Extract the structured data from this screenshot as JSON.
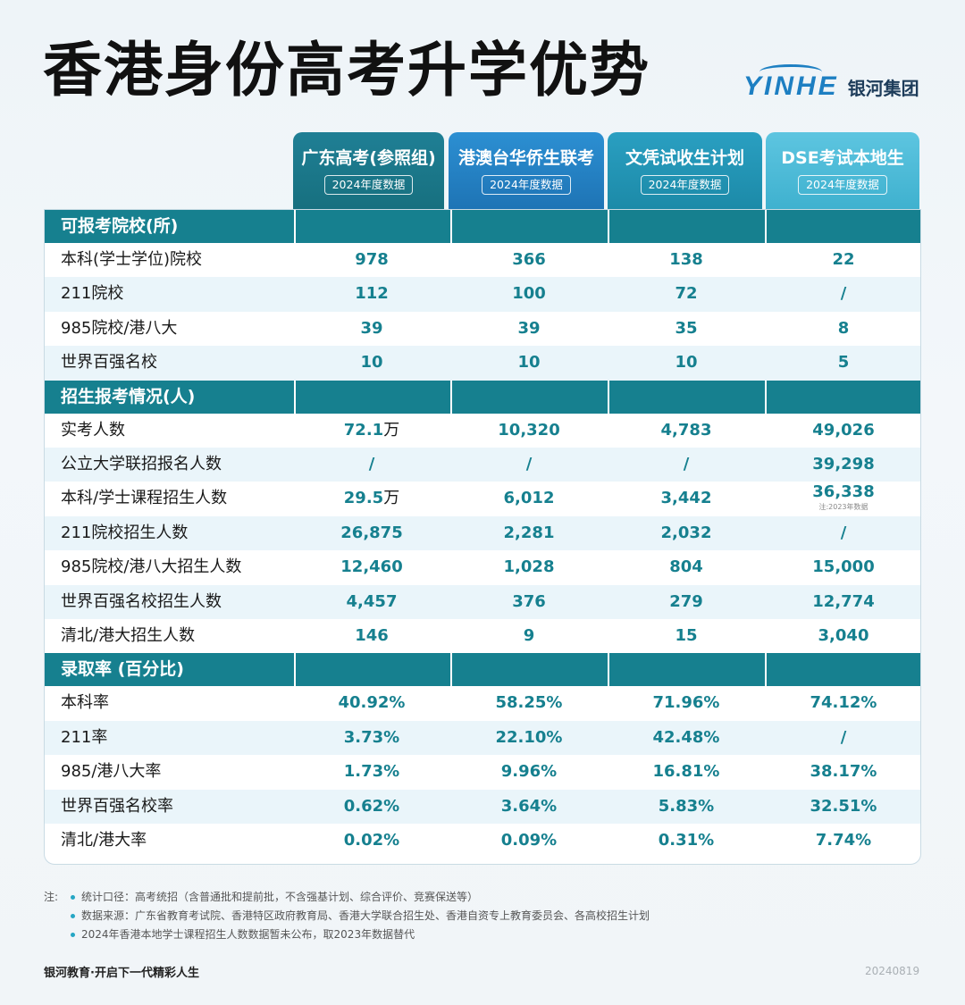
{
  "title": "香港身份高考升学优势",
  "brand": {
    "logo_text": "YINHE",
    "name": "银河集团"
  },
  "columns": [
    {
      "name": "广东高考(参照组)",
      "sub": "2024年度数据"
    },
    {
      "name": "港澳台华侨生联考",
      "sub": "2024年度数据"
    },
    {
      "name": "文凭试收生计划",
      "sub": "2024年度数据"
    },
    {
      "name": "DSE考试本地生",
      "sub": "2024年度数据"
    }
  ],
  "sections": [
    {
      "label": "可报考院校(所)",
      "rows": [
        {
          "label": "本科(学士学位)院校",
          "values": [
            "978",
            "366",
            "138",
            "22"
          ]
        },
        {
          "label": "211院校",
          "values": [
            "112",
            "100",
            "72",
            "/"
          ]
        },
        {
          "label": "985院校/港八大",
          "values": [
            "39",
            "39",
            "35",
            "8"
          ]
        },
        {
          "label": "世界百强名校",
          "values": [
            "10",
            "10",
            "10",
            "5"
          ]
        }
      ]
    },
    {
      "label": "招生报考情况(人)",
      "rows": [
        {
          "label": "实考人数",
          "values": [
            "72.1",
            "10,320",
            "4,783",
            "49,026"
          ],
          "unit0": "万"
        },
        {
          "label": "公立大学联招报名人数",
          "values": [
            "/",
            "/",
            "/",
            "39,298"
          ]
        },
        {
          "label": "本科/学士课程招生人数",
          "values": [
            "29.5",
            "6,012",
            "3,442",
            "36,338"
          ],
          "unit0": "万",
          "note3": "注:2023年数据"
        },
        {
          "label": "211院校招生人数",
          "values": [
            "26,875",
            "2,281",
            "2,032",
            "/"
          ]
        },
        {
          "label": "985院校/港八大招生人数",
          "values": [
            "12,460",
            "1,028",
            "804",
            "15,000"
          ]
        },
        {
          "label": "世界百强名校招生人数",
          "values": [
            "4,457",
            "376",
            "279",
            "12,774"
          ]
        },
        {
          "label": "清北/港大招生人数",
          "values": [
            "146",
            "9",
            "15",
            "3,040"
          ]
        }
      ]
    },
    {
      "label": "录取率 (百分比)",
      "rows": [
        {
          "label": "本科率",
          "values": [
            "40.92%",
            "58.25%",
            "71.96%",
            "74.12%"
          ]
        },
        {
          "label": "211率",
          "values": [
            "3.73%",
            "22.10%",
            "42.48%",
            "/"
          ]
        },
        {
          "label": "985/港八大率",
          "values": [
            "1.73%",
            "9.96%",
            "16.81%",
            "38.17%"
          ]
        },
        {
          "label": "世界百强名校率",
          "values": [
            "0.62%",
            "3.64%",
            "5.83%",
            "32.51%"
          ]
        },
        {
          "label": "清北/港大率",
          "values": [
            "0.02%",
            "0.09%",
            "0.31%",
            "7.74%"
          ]
        }
      ]
    }
  ],
  "notes": {
    "label": "注:",
    "items": [
      "统计口径：高考统招（含普通批和提前批，不含强基计划、综合评价、竞赛保送等）",
      "数据来源：广东省教育考试院、香港特区政府教育局、香港大学联合招生处、香港自资专上教育委员会、各高校招生计划",
      "2024年香港本地学士课程招生人数数据暂未公布，取2023年数据替代"
    ]
  },
  "footer": {
    "slogan": "银河教育·开启下一代精彩人生",
    "code": "20240819"
  },
  "colors": {
    "section_bg": "#16808f",
    "value_text": "#16808f",
    "alt_row": "#eaf5fa"
  }
}
